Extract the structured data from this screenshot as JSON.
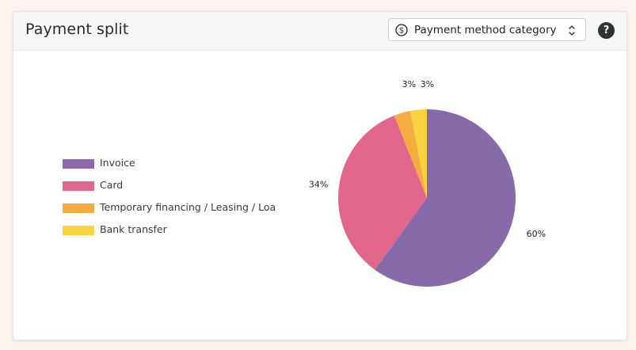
{
  "header": {
    "title": "Payment split",
    "select_label": "Payment method category",
    "help_label": "?"
  },
  "colors": {
    "invoice": "#866aaa",
    "card": "#e0668b",
    "temporary": "#f4ab40",
    "bank": "#f9d340"
  },
  "legend": [
    {
      "label": "Invoice",
      "color": "#866aaa"
    },
    {
      "label": "Card",
      "color": "#e0668b"
    },
    {
      "label": "Temporary financing / Leasing / Loa",
      "color": "#f4ab40"
    },
    {
      "label": "Bank transfer",
      "color": "#f9d340"
    }
  ],
  "chart_data": {
    "type": "pie",
    "categories": [
      "Invoice",
      "Card",
      "Temporary financing / Leasing / Loa",
      "Bank transfer"
    ],
    "values": [
      60,
      34,
      3,
      3
    ],
    "labels": [
      "60%",
      "34%",
      "3%",
      "3%"
    ],
    "legend_position": "left"
  }
}
